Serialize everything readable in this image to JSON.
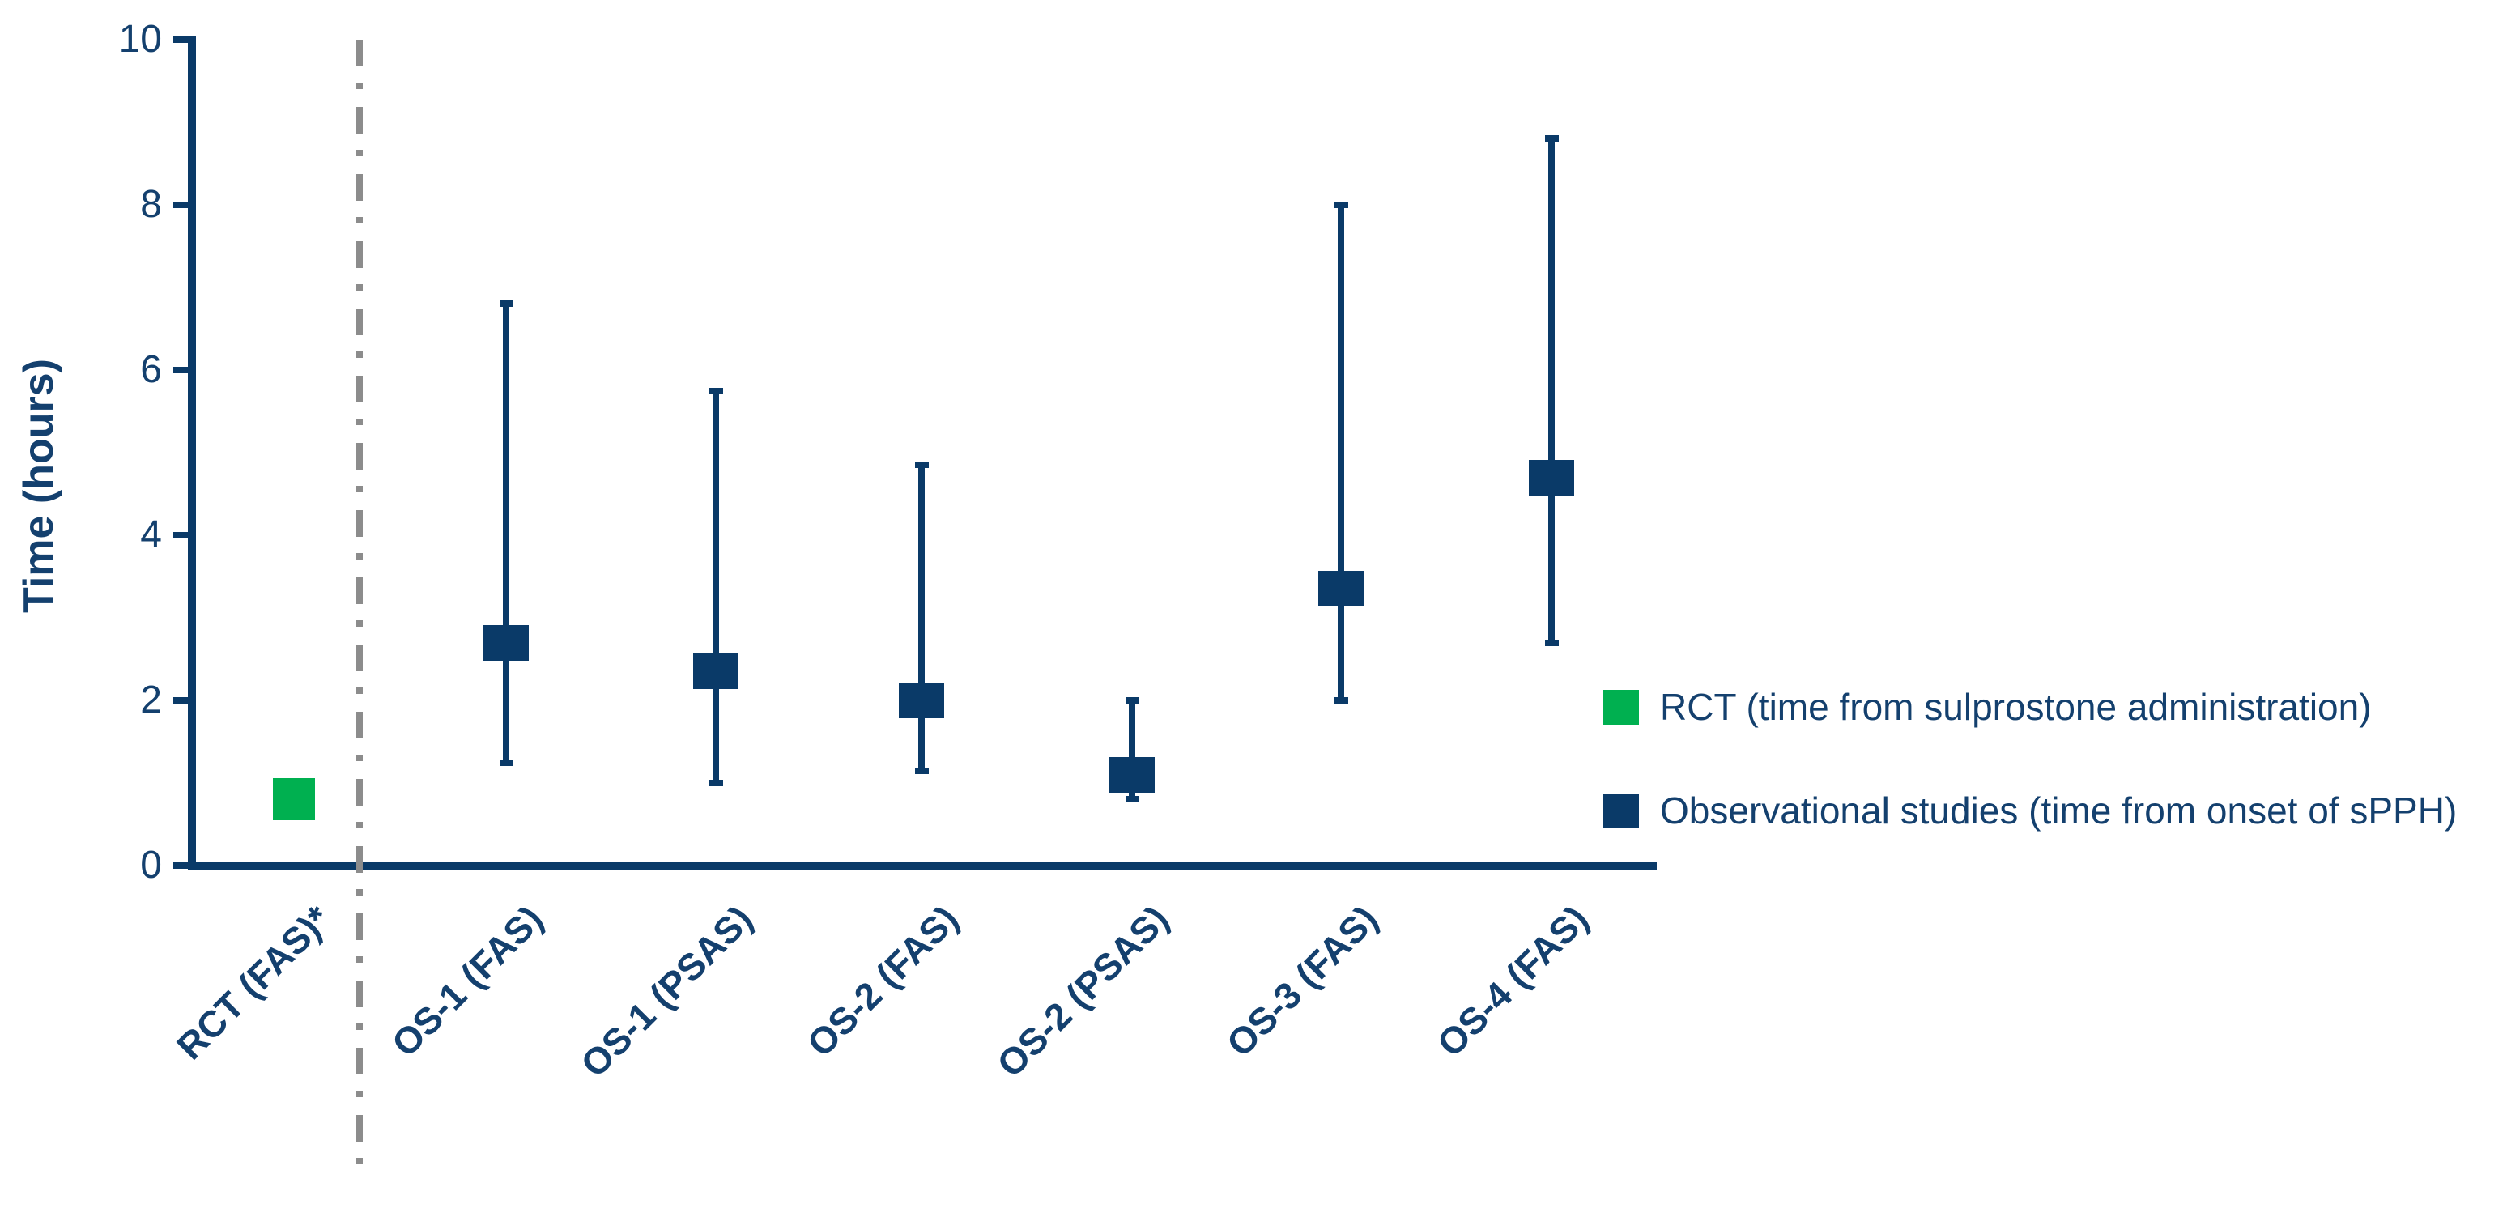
{
  "colors": {
    "navy": "#0a3a68",
    "green": "#00b050",
    "separator_gray": "#8c8c8c",
    "text_navy": "#14406e"
  },
  "chart_data": {
    "type": "box-whisker",
    "title": "",
    "xlabel": "",
    "ylabel": "Time (hours)",
    "ylim": [
      0,
      10
    ],
    "yticks": [
      0,
      2,
      4,
      6,
      8,
      10
    ],
    "grid": false,
    "legend_position": "right",
    "separator_after_category_index": 0,
    "categories": [
      "RCT (FAS)*",
      "OS-1 (FAS)",
      "OS-1 (PSAS)",
      "OS-2 (FAS)",
      "OS-2 (PSAS)",
      "OS-3 (FAS)",
      "OS-4 (FAS)"
    ],
    "series": [
      {
        "category": "RCT (FAS)*",
        "group": "RCT",
        "marker": "square",
        "value": 0.8
      },
      {
        "category": "OS-1 (FAS)",
        "group": "Observational studies",
        "marker": "box-whisker",
        "median": 2.7,
        "lower": 1.25,
        "upper": 6.8
      },
      {
        "category": "OS-1 (PSAS)",
        "group": "Observational studies",
        "marker": "box-whisker",
        "median": 2.35,
        "lower": 1.0,
        "upper": 5.75
      },
      {
        "category": "OS-2 (FAS)",
        "group": "Observational studies",
        "marker": "box-whisker",
        "median": 2.0,
        "lower": 1.15,
        "upper": 4.85
      },
      {
        "category": "OS-2 (PSAS)",
        "group": "Observational studies",
        "marker": "box-whisker",
        "median": 1.1,
        "lower": 0.8,
        "upper": 2.0
      },
      {
        "category": "OS-3 (FAS)",
        "group": "Observational studies",
        "marker": "box-whisker",
        "median": 3.35,
        "lower": 2.0,
        "upper": 8.0
      },
      {
        "category": "OS-4 (FAS)",
        "group": "Observational studies",
        "marker": "box-whisker",
        "median": 4.7,
        "lower": 2.7,
        "upper": 8.8
      }
    ],
    "legend": [
      {
        "label": "RCT (time from sulprostone administration)",
        "color": "#00b050"
      },
      {
        "label": "Observational studies (time from onset of sPPH)",
        "color": "#0a3a68"
      }
    ]
  }
}
